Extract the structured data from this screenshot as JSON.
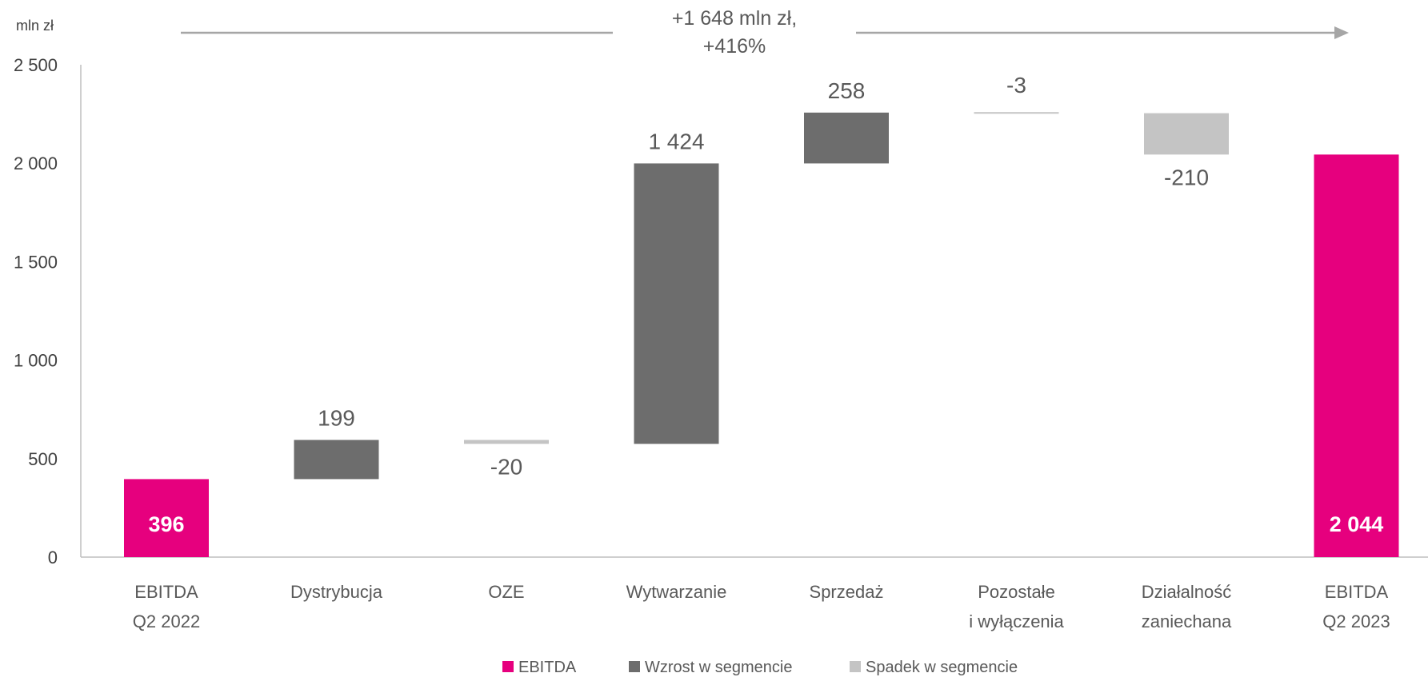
{
  "chart_data": {
    "type": "bar",
    "subtype": "waterfall",
    "unit_label": "mln zł",
    "ylim": [
      0,
      2500
    ],
    "y_ticks": [
      "0",
      "500",
      "1 000",
      "1 500",
      "2 000",
      "2 500"
    ],
    "y_tick_values": [
      0,
      500,
      1000,
      1500,
      2000,
      2500
    ],
    "grid": false,
    "categories": [
      [
        "EBITDA",
        "Q2 2022"
      ],
      [
        "Dystrybucja"
      ],
      [
        "OZE"
      ],
      [
        "Wytwarzanie"
      ],
      [
        "Sprzedaż"
      ],
      [
        "Pozostałe",
        "i wyłączenia"
      ],
      [
        "Działalność",
        "zaniechana"
      ],
      [
        "EBITDA",
        "Q2 2023"
      ]
    ],
    "bars": [
      {
        "kind": "total",
        "value": 396,
        "label": "396"
      },
      {
        "kind": "increase",
        "value": 199,
        "label": "199"
      },
      {
        "kind": "decrease",
        "value": -20,
        "label": "-20"
      },
      {
        "kind": "increase",
        "value": 1424,
        "label": "1 424"
      },
      {
        "kind": "increase",
        "value": 258,
        "label": "258"
      },
      {
        "kind": "decrease",
        "value": -3,
        "label": "-3"
      },
      {
        "kind": "decrease",
        "value": -210,
        "label": "-210"
      },
      {
        "kind": "total",
        "value": 2044,
        "label": "2 044"
      }
    ],
    "annotation": [
      "+1 648 mln zł,",
      "+416%"
    ],
    "legend": [
      {
        "kind": "total",
        "label": "EBITDA"
      },
      {
        "kind": "increase",
        "label": "Wzrost w segmencie"
      },
      {
        "kind": "decrease",
        "label": "Spadek w segmencie"
      }
    ],
    "legend_position": "bottom",
    "colors": {
      "total": "#E6007E",
      "increase": "#6D6D6D",
      "decrease": "#C4C4C4",
      "axis": "#BFBFBF",
      "arrow": "#A6A6A6"
    }
  }
}
